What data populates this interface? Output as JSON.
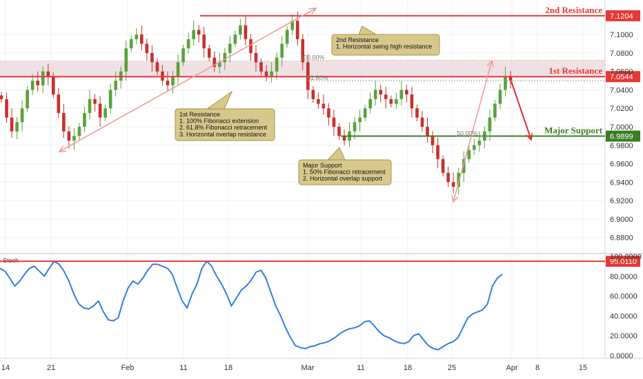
{
  "chart_data": [
    {
      "type": "candlestick",
      "y_axis": {
        "ylim": [
          6.87,
          7.13
        ],
        "ticks": [
          "7.1000",
          "7.0800",
          "7.0600",
          "7.0400",
          "7.0200",
          "7.0000",
          "6.9800",
          "6.9600",
          "6.9400",
          "6.9200",
          "6.9000",
          "6.8800"
        ]
      },
      "x_axis": {
        "ticks": [
          "14",
          "21",
          "Feb",
          "11",
          "18",
          "Mar",
          "11",
          "18",
          "25",
          "Apr",
          "8",
          "15"
        ]
      },
      "levels": [
        {
          "name": "2nd Resistance",
          "value": 7.1204,
          "value_label": "7.1204",
          "color": "#e53935"
        },
        {
          "name": "1st Resistance",
          "value": 7.0544,
          "value_label": "7.0544",
          "color": "#e53935"
        },
        {
          "name": "Major Support",
          "value": 6.9899,
          "value_label": "6.9899",
          "color": "#3a7d23"
        }
      ],
      "fib_labels": [
        "100.00%",
        "61.80%",
        "50.00%"
      ],
      "annotations": [
        {
          "lines": [
            "2nd Resistance",
            "1. Horizontal swing high resistance"
          ]
        },
        {
          "lines": [
            "1st Resistance",
            "1. 100% Fibonacci extension",
            "2. 61.8% Fibonacci retracement",
            "3. Horizontal overlap resistance"
          ]
        },
        {
          "lines": [
            "Major Support",
            "1. 50% Fibonacci retracement",
            "2. Horizontal overlap support"
          ]
        }
      ],
      "close_series": [
        7.03,
        7.01,
        6.995,
        7.005,
        7.02,
        7.04,
        7.05,
        7.045,
        7.06,
        7.055,
        7.035,
        7.015,
        6.995,
        6.985,
        6.99,
        7.0,
        7.015,
        7.03,
        7.025,
        7.01,
        7.02,
        7.04,
        7.05,
        7.06,
        7.085,
        7.095,
        7.1,
        7.09,
        7.08,
        7.07,
        7.06,
        7.05,
        7.045,
        7.055,
        7.07,
        7.085,
        7.095,
        7.105,
        7.1,
        7.085,
        7.075,
        7.065,
        7.07,
        7.08,
        7.09,
        7.1,
        7.11,
        7.095,
        7.08,
        7.07,
        7.06,
        7.055,
        7.06,
        7.075,
        7.09,
        7.105,
        7.115,
        7.095,
        7.07,
        7.04,
        7.03,
        7.025,
        7.02,
        7.01,
        7.0,
        6.99,
        6.985,
        6.995,
        7.005,
        7.01,
        7.02,
        7.03,
        7.04,
        7.035,
        7.03,
        7.025,
        7.03,
        7.04,
        7.035,
        7.02,
        7.01,
        7.0,
        6.99,
        6.98,
        6.965,
        6.95,
        6.94,
        6.935,
        6.95,
        6.965,
        6.975,
        6.98,
        6.985,
        6.995,
        7.01,
        7.025,
        7.04,
        7.055,
        7.05
      ]
    },
    {
      "type": "line",
      "title": "Stoch",
      "y_axis": {
        "ylim": [
          0,
          100
        ],
        "ticks": [
          "100.0000",
          "80.0000",
          "60.0000",
          "40.0000",
          "20.0000",
          "0.0000"
        ]
      },
      "levels": [
        {
          "value": 95.011,
          "value_label": "95.0110",
          "color": "#e53935"
        }
      ],
      "values": [
        88,
        85,
        78,
        70,
        75,
        82,
        88,
        90,
        85,
        80,
        88,
        95,
        92,
        85,
        75,
        62,
        52,
        48,
        47,
        50,
        55,
        44,
        36,
        35,
        38,
        55,
        68,
        75,
        72,
        78,
        86,
        92,
        92,
        90,
        88,
        82,
        68,
        55,
        48,
        62,
        72,
        88,
        95,
        90,
        80,
        72,
        62,
        50,
        58,
        66,
        70,
        76,
        84,
        86,
        78,
        64,
        50,
        40,
        28,
        18,
        10,
        8,
        7,
        9,
        10,
        12,
        13,
        15,
        18,
        22,
        25,
        27,
        28,
        30,
        34,
        35,
        30,
        24,
        20,
        18,
        15,
        13,
        12,
        14,
        20,
        22,
        16,
        10,
        7,
        6,
        9,
        12,
        14,
        18,
        28,
        38,
        42,
        44,
        46,
        52,
        70,
        78,
        82
      ]
    }
  ]
}
